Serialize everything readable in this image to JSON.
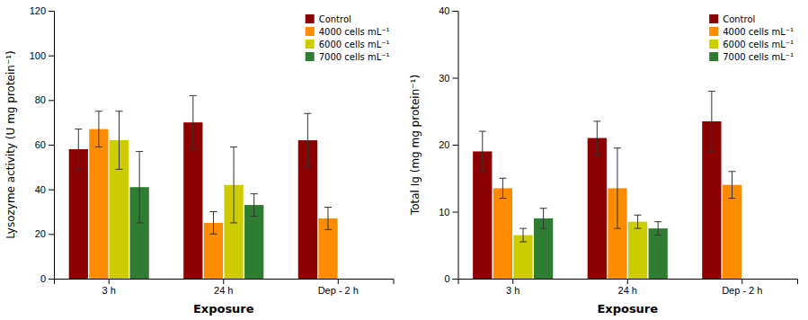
{
  "chart_data": [
    {
      "type": "bar",
      "xlabel": "Exposure",
      "ylabel": "Lysozyme activity (U mg protein⁻¹)",
      "categories": [
        "3 h",
        "24 h",
        "Dep - 2 h"
      ],
      "series": [
        {
          "name": "Control",
          "color": "#8B0000",
          "values": [
            58,
            70,
            62
          ],
          "errors": [
            9,
            12,
            12
          ]
        },
        {
          "name": "4000 cells mL⁻¹",
          "color": "#FF8C00",
          "values": [
            67,
            25,
            27
          ],
          "errors": [
            8,
            5,
            5
          ]
        },
        {
          "name": "6000 cells mL⁻¹",
          "color": "#CCCC00",
          "values": [
            62,
            42,
            null
          ],
          "errors": [
            13,
            17,
            null
          ]
        },
        {
          "name": "7000 cells mL⁻¹",
          "color": "#2E7D32",
          "values": [
            41,
            33,
            null
          ],
          "errors": [
            16,
            5,
            null
          ]
        }
      ],
      "ylim": [
        0,
        120
      ],
      "yticks": [
        0,
        20,
        40,
        60,
        80,
        100,
        120
      ],
      "legend": "upper right",
      "grid": false
    },
    {
      "type": "bar",
      "xlabel": "Exposure",
      "ylabel": "Total Ig (mg mg protein⁻¹)",
      "categories": [
        "3 h",
        "24 h",
        "Dep - 2 h"
      ],
      "series": [
        {
          "name": "Control",
          "color": "#8B0000",
          "values": [
            19,
            21,
            23.5
          ],
          "errors": [
            3,
            2.5,
            4.5
          ]
        },
        {
          "name": "4000 cells mL⁻¹",
          "color": "#FF8C00",
          "values": [
            13.5,
            13.5,
            14
          ],
          "errors": [
            1.5,
            6,
            2
          ]
        },
        {
          "name": "6000 cells mL⁻¹",
          "color": "#CCCC00",
          "values": [
            6.5,
            8.5,
            null
          ],
          "errors": [
            1,
            1,
            null
          ]
        },
        {
          "name": "7000 cells mL⁻¹",
          "color": "#2E7D32",
          "values": [
            9,
            7.5,
            null
          ],
          "errors": [
            1.5,
            1,
            null
          ]
        }
      ],
      "ylim": [
        0,
        40
      ],
      "yticks": [
        0,
        10,
        20,
        30,
        40
      ],
      "legend": "upper right",
      "grid": false
    }
  ]
}
